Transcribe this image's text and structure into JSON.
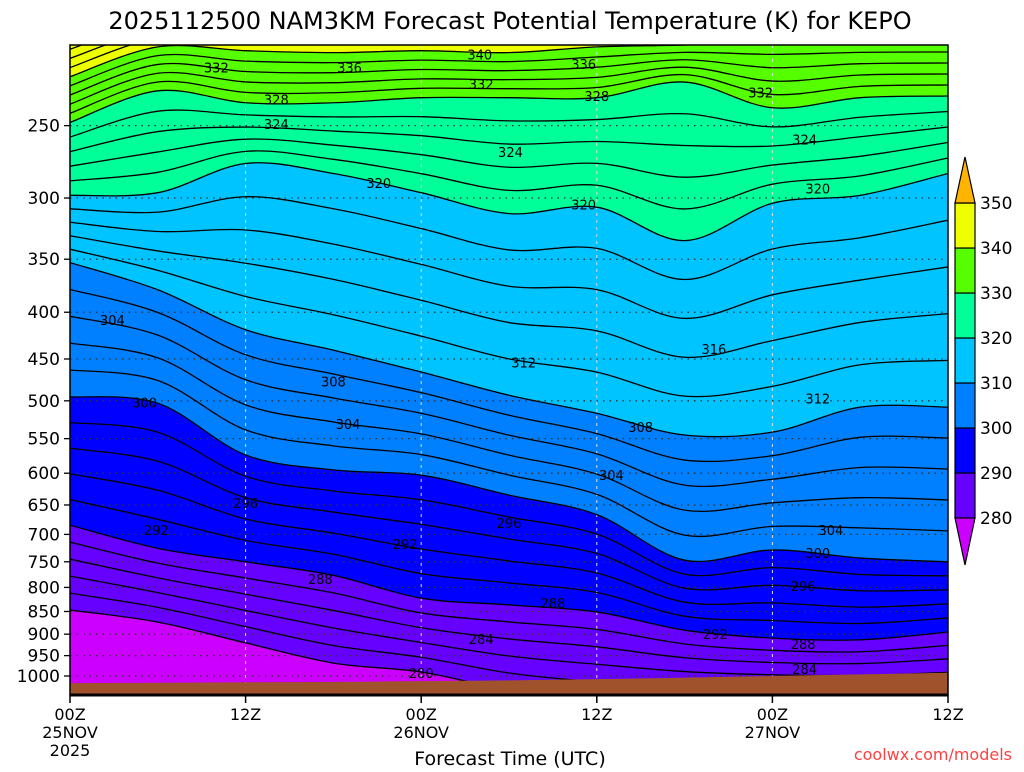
{
  "chart_data": {
    "type": "heatmap",
    "subtype": "filled-contour time-height cross section",
    "title": "2025112500 NAM3KM Forecast Potential Temperature (K) for KEPO",
    "xlabel": "Forecast Time (UTC)",
    "ylabel": "",
    "credit": "coolwx.com/models",
    "x_hours": [
      0,
      6,
      12,
      18,
      24,
      30,
      36,
      42,
      48,
      54,
      60
    ],
    "xlim_hours": [
      0,
      60
    ],
    "ylim_hpa": [
      1049,
      205
    ],
    "y_scale": "log",
    "y_ticks": [
      "250",
      "300",
      "350",
      "400",
      "450",
      "500",
      "550",
      "600",
      "650",
      "700",
      "750",
      "800",
      "850",
      "900",
      "950",
      "1000"
    ],
    "x_ticks": [
      {
        "hour": 0,
        "time": "00Z",
        "date": "25NOV",
        "year": "2025"
      },
      {
        "hour": 12,
        "time": "12Z",
        "date": "",
        "year": ""
      },
      {
        "hour": 24,
        "time": "00Z",
        "date": "26NOV",
        "year": ""
      },
      {
        "hour": 36,
        "time": "12Z",
        "date": "",
        "year": ""
      },
      {
        "hour": 48,
        "time": "00Z",
        "date": "27NOV",
        "year": ""
      },
      {
        "hour": 60,
        "time": "12Z",
        "date": "",
        "year": ""
      }
    ],
    "isentrope_pressure_hpa": {
      "280": [
        847,
        873,
        920,
        968,
        990,
        1036,
        1060,
        1060,
        1060,
        1060,
        1060
      ],
      "290": [
        684,
        725,
        750,
        776,
        822,
        836,
        851,
        891,
        909,
        913,
        895
      ],
      "300": [
        495,
        503,
        573,
        595,
        603,
        634,
        666,
        747,
        728,
        743,
        750
      ],
      "310": [
        353,
        378,
        418,
        440,
        465,
        493,
        516,
        545,
        541,
        508,
        508
      ],
      "320": [
        298,
        296,
        275,
        282,
        296,
        312,
        307,
        334,
        304,
        298,
        282
      ],
      "330": [
        248,
        229,
        236,
        236,
        233,
        233,
        233,
        224,
        239,
        233,
        232
      ],
      "340": [
        221,
        205,
        207,
        208,
        207,
        208,
        205,
        204,
        202,
        202,
        202
      ]
    },
    "surface_pressure_hpa": [
      1018,
      1017,
      1016,
      1015,
      1013,
      1011,
      1008,
      1004,
      1000,
      996,
      992
    ],
    "contour_interval_k": 2,
    "contour_labels": [
      {
        "text": "340",
        "hour": 28.0,
        "p": 209
      },
      {
        "text": "336",
        "hour": 19.1,
        "p": 216
      },
      {
        "text": "336",
        "hour": 35.1,
        "p": 214
      },
      {
        "text": "332",
        "hour": 10.0,
        "p": 216
      },
      {
        "text": "332",
        "hour": 28.1,
        "p": 225
      },
      {
        "text": "332",
        "hour": 47.2,
        "p": 230
      },
      {
        "text": "328",
        "hour": 14.1,
        "p": 234
      },
      {
        "text": "328",
        "hour": 36.0,
        "p": 232
      },
      {
        "text": "324",
        "hour": 14.1,
        "p": 249
      },
      {
        "text": "324",
        "hour": 30.1,
        "p": 267
      },
      {
        "text": "324",
        "hour": 50.2,
        "p": 259
      },
      {
        "text": "320",
        "hour": 21.1,
        "p": 289
      },
      {
        "text": "320",
        "hour": 35.1,
        "p": 305
      },
      {
        "text": "320",
        "hour": 51.1,
        "p": 293
      },
      {
        "text": "316",
        "hour": 44.0,
        "p": 439
      },
      {
        "text": "312",
        "hour": 31.0,
        "p": 454
      },
      {
        "text": "312",
        "hour": 51.1,
        "p": 497
      },
      {
        "text": "308",
        "hour": 18.0,
        "p": 476
      },
      {
        "text": "308",
        "hour": 39.0,
        "p": 534
      },
      {
        "text": "304",
        "hour": 2.9,
        "p": 408
      },
      {
        "text": "304",
        "hour": 19.0,
        "p": 530
      },
      {
        "text": "304",
        "hour": 37.0,
        "p": 603
      },
      {
        "text": "304",
        "hour": 52.0,
        "p": 692
      },
      {
        "text": "300",
        "hour": 5.1,
        "p": 502
      },
      {
        "text": "300",
        "hour": 51.1,
        "p": 734
      },
      {
        "text": "296",
        "hour": 12.0,
        "p": 647
      },
      {
        "text": "296",
        "hour": 30.0,
        "p": 680
      },
      {
        "text": "296",
        "hour": 50.1,
        "p": 797
      },
      {
        "text": "292",
        "hour": 5.9,
        "p": 692
      },
      {
        "text": "292",
        "hour": 22.9,
        "p": 717
      },
      {
        "text": "292",
        "hour": 44.1,
        "p": 900
      },
      {
        "text": "288",
        "hour": 17.1,
        "p": 783
      },
      {
        "text": "288",
        "hour": 33.0,
        "p": 832
      },
      {
        "text": "288",
        "hour": 50.1,
        "p": 923
      },
      {
        "text": "284",
        "hour": 28.1,
        "p": 911
      },
      {
        "text": "284",
        "hour": 50.2,
        "p": 982
      },
      {
        "text": "280",
        "hour": 24.0,
        "p": 993
      }
    ],
    "colorbar": {
      "levels": [
        "280",
        "290",
        "300",
        "310",
        "320",
        "330",
        "340",
        "350"
      ],
      "below_color": "#cc00ff",
      "band_colors": [
        "#6600ff",
        "#0000ff",
        "#0080ff",
        "#00c4ff",
        "#00ff99",
        "#55ff00",
        "#eeff00"
      ],
      "above_color": "#ffb400"
    },
    "ground_color": "#a0522d"
  }
}
